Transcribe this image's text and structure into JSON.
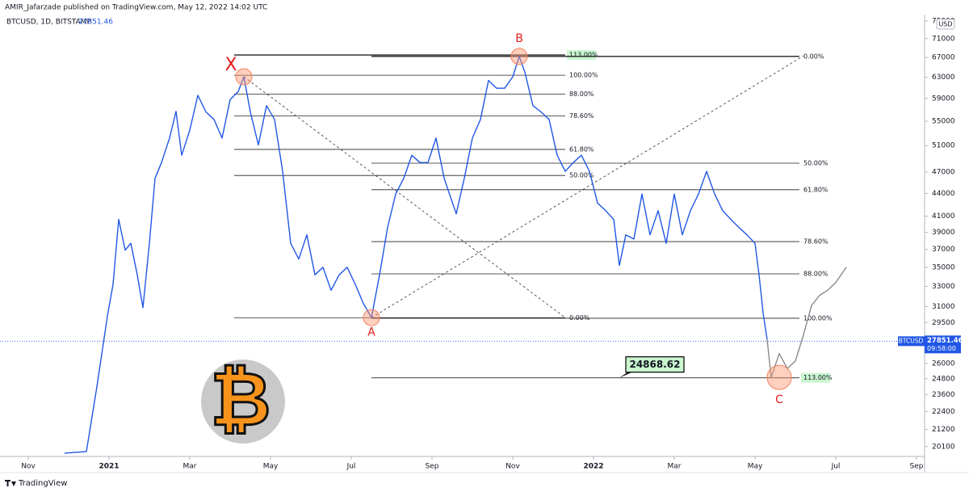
{
  "header": {
    "author_line": "AMIR_Jafarzade published on TradingView.com, May 12, 2022 14:02 UTC",
    "symbol_line": "BTCUSD, 1D, BITSTAMP",
    "currency": "USD",
    "footer": "TradingView",
    "logo": "₿"
  },
  "chart_data": {
    "type": "line",
    "log_scale": true,
    "xlim": [
      -0.7,
      22.2
    ],
    "ylim": [
      19500,
      76490
    ],
    "xticks": [
      {
        "value": 0,
        "label": "Nov"
      },
      {
        "value": 2,
        "label": "2021"
      },
      {
        "value": 4,
        "label": "Mar"
      },
      {
        "value": 6,
        "label": "May"
      },
      {
        "value": 8,
        "label": "Jul"
      },
      {
        "value": 10,
        "label": "Sep"
      },
      {
        "value": 12,
        "label": "Nov"
      },
      {
        "value": 14,
        "label": "2022"
      },
      {
        "value": 16,
        "label": "Mar"
      },
      {
        "value": 18,
        "label": "May"
      },
      {
        "value": 20,
        "label": "Jul"
      },
      {
        "value": 22,
        "label": "Sep"
      }
    ],
    "yticks": [
      75000,
      71000,
      67000,
      63000,
      59000,
      55000,
      51000,
      47000,
      44000,
      41000,
      39000,
      37000,
      35000,
      33000,
      31000,
      29500,
      26000,
      24800,
      23600,
      22400,
      21200,
      20100
    ],
    "series": [
      {
        "color": "#2157e6",
        "x": [
          0.9,
          1.44,
          1.7,
          1.96,
          2.1,
          2.24,
          2.4,
          2.54,
          2.7,
          2.84,
          3.0,
          3.14,
          3.3,
          3.5,
          3.66,
          3.8,
          4.0,
          4.2,
          4.4,
          4.6,
          4.8,
          5.0,
          5.2,
          5.34,
          5.5,
          5.7,
          5.9,
          6.1,
          6.3,
          6.5,
          6.7,
          6.9,
          7.1,
          7.3,
          7.5,
          7.7,
          7.9,
          8.1,
          8.3,
          8.5,
          8.7,
          8.9,
          9.1,
          9.3,
          9.5,
          9.7,
          9.9,
          10.1,
          10.3,
          10.6,
          10.8,
          11.0,
          11.2,
          11.4,
          11.6,
          11.8,
          12.0,
          12.16,
          12.3,
          12.5,
          12.7,
          12.9,
          13.1,
          13.3,
          13.5,
          13.7,
          13.9,
          14.1,
          14.3,
          14.5,
          14.64,
          14.8,
          15.0,
          15.2,
          15.4,
          15.6,
          15.8,
          16.0,
          16.2,
          16.4,
          16.6,
          16.8,
          17.0,
          17.2,
          17.4,
          17.6,
          17.8,
          18.0,
          18.1,
          18.2,
          18.3
        ],
        "values": [
          19700,
          19800,
          24200,
          30100,
          33200,
          40600,
          36900,
          37700,
          34200,
          30900,
          37700,
          46100,
          48400,
          52200,
          56700,
          49500,
          53500,
          59600,
          56600,
          55300,
          52200,
          58800,
          60300,
          63100,
          56600,
          51100,
          57700,
          55300,
          47100,
          37700,
          35900,
          38700,
          34200,
          35000,
          32600,
          34200,
          35000,
          33200,
          31300,
          29950,
          34200,
          39600,
          43900,
          46100,
          49500,
          48400,
          48400,
          52200,
          46100,
          41300,
          46100,
          52200,
          55300,
          62400,
          60900,
          60900,
          63100,
          67200,
          64000,
          57700,
          56600,
          55300,
          49500,
          47100,
          48400,
          49500,
          47100,
          42700,
          41700,
          40600,
          35200,
          38700,
          38200,
          43900,
          38700,
          41700,
          37700,
          43900,
          38700,
          41700,
          43900,
          47100,
          43900,
          41700,
          40600,
          39600,
          38700,
          37700,
          34200,
          30400,
          28000
        ]
      },
      {
        "color": "#8a8a8a",
        "x": [
          18.3,
          18.4,
          18.6,
          18.8,
          19.0,
          19.2,
          19.4,
          19.6,
          19.8,
          20.0,
          20.26
        ],
        "values": [
          28000,
          24900,
          26800,
          25600,
          26200,
          28400,
          31100,
          32100,
          32600,
          33400,
          35000
        ]
      }
    ],
    "fibs": [
      {
        "x": [
          5.1,
          13.3
        ],
        "levels": [
          {
            "label": "113.00%",
            "value": 67500,
            "highlight": true
          },
          {
            "label": "100.00%",
            "value": 63400
          },
          {
            "label": "88.00%",
            "value": 59800
          },
          {
            "label": "78.60%",
            "value": 55900
          },
          {
            "label": "61.80%",
            "value": 50400
          },
          {
            "label": "50.00%",
            "value": 46500
          },
          {
            "label": "0.00%",
            "value": 29950
          }
        ]
      },
      {
        "x": [
          8.5,
          19.1
        ],
        "levels": [
          {
            "label": "0.00%",
            "value": 67200
          },
          {
            "label": "50.00%",
            "value": 48300
          },
          {
            "label": "61.80%",
            "value": 44500
          },
          {
            "label": "78.60%",
            "value": 37900
          },
          {
            "label": "88.00%",
            "value": 34300
          },
          {
            "label": "100.00%",
            "value": 29900
          },
          {
            "label": "113.00%",
            "value": 24868.62,
            "highlight": true
          }
        ]
      }
    ],
    "trend_lines": [
      {
        "x": [
          5.34,
          13.3
        ],
        "values": [
          63100,
          29950
        ]
      },
      {
        "x": [
          8.5,
          19.2
        ],
        "values": [
          29950,
          67300
        ]
      }
    ],
    "points": [
      {
        "label": "X",
        "x": 5.34,
        "value": 63100,
        "side": "above-left"
      },
      {
        "label": "A",
        "x": 8.5,
        "value": 29950,
        "side": "below"
      },
      {
        "label": "B",
        "x": 12.16,
        "value": 67200,
        "side": "above"
      },
      {
        "label": "C",
        "x": 18.6,
        "value": 24900,
        "side": "below"
      }
    ],
    "callout": {
      "text": "24868.62",
      "x": 14.64,
      "value": 24868.62
    },
    "last_price": {
      "symbol": "BTCUSD",
      "value": 27851.46,
      "countdown": "09:58:00"
    }
  }
}
